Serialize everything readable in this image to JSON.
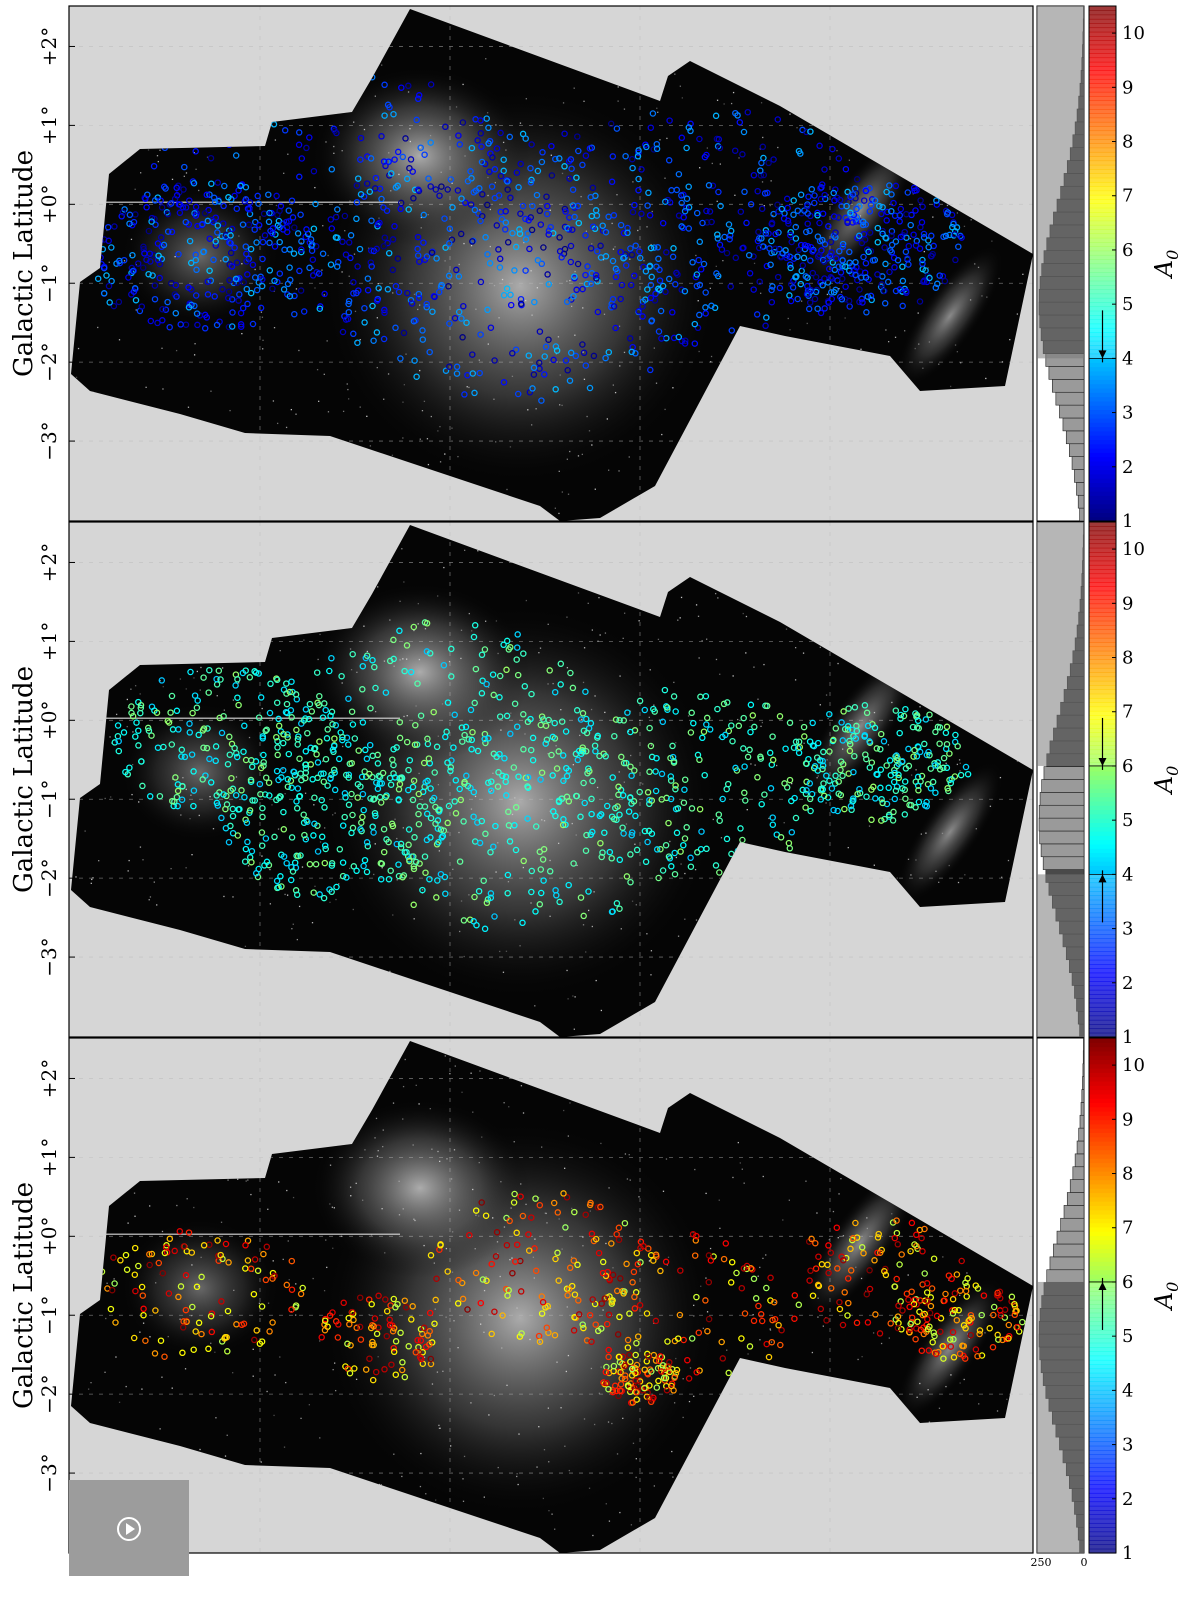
{
  "axes": {
    "ylabel": "Galactic Latitude",
    "yticks": [
      "+2°",
      "+1°",
      "+0°",
      "−1°",
      "−2°",
      "−3°"
    ],
    "ytick_values": [
      2,
      1,
      0,
      -1,
      -2,
      -3
    ],
    "hist_xticks": [
      "250",
      "0"
    ]
  },
  "colors": {
    "background": "#d6d6d6",
    "map_dark": "#050505",
    "hist_selected": "#9a9a9a",
    "hist_other": "#4a4a4a"
  },
  "chart_data": [
    {
      "type": "scatter",
      "panel": "top",
      "ylabel": "Galactic Latitude",
      "ylim": [
        -4,
        2.5
      ],
      "colorbar": {
        "label": "A0",
        "range": [
          1,
          10.5
        ],
        "ticks": [
          1,
          2,
          3,
          4,
          5,
          6,
          7,
          8,
          9,
          10
        ],
        "colormap": "jet",
        "selection": "A0 < 4"
      },
      "histogram": {
        "orientation": "horizontal",
        "xlim": [
          250,
          0
        ],
        "selected_range": [
          1,
          4
        ]
      },
      "point_color_range": [
        1,
        4
      ]
    },
    {
      "type": "scatter",
      "panel": "middle",
      "ylabel": "Galactic Latitude",
      "ylim": [
        -4,
        2.5
      ],
      "colorbar": {
        "label": "A0",
        "range": [
          1,
          10.5
        ],
        "ticks": [
          1,
          2,
          3,
          4,
          5,
          6,
          7,
          8,
          9,
          10
        ],
        "colormap": "jet",
        "selection": "4 < A0 < 6"
      },
      "histogram": {
        "orientation": "horizontal",
        "xlim": [
          250,
          0
        ],
        "selected_range": [
          4,
          6
        ]
      },
      "point_color_range": [
        4,
        6
      ]
    },
    {
      "type": "scatter",
      "panel": "bottom",
      "ylabel": "Galactic Latitude",
      "ylim": [
        -4,
        2.5
      ],
      "colorbar": {
        "label": "A0",
        "range": [
          1,
          10.5
        ],
        "ticks": [
          1,
          2,
          3,
          4,
          5,
          6,
          7,
          8,
          9,
          10
        ],
        "colormap": "jet",
        "selection": "A0 > 6"
      },
      "histogram": {
        "orientation": "horizontal",
        "xlim": [
          250,
          0
        ],
        "selected_range": [
          6,
          10.5
        ]
      },
      "point_color_range": [
        6,
        10.5
      ]
    }
  ]
}
